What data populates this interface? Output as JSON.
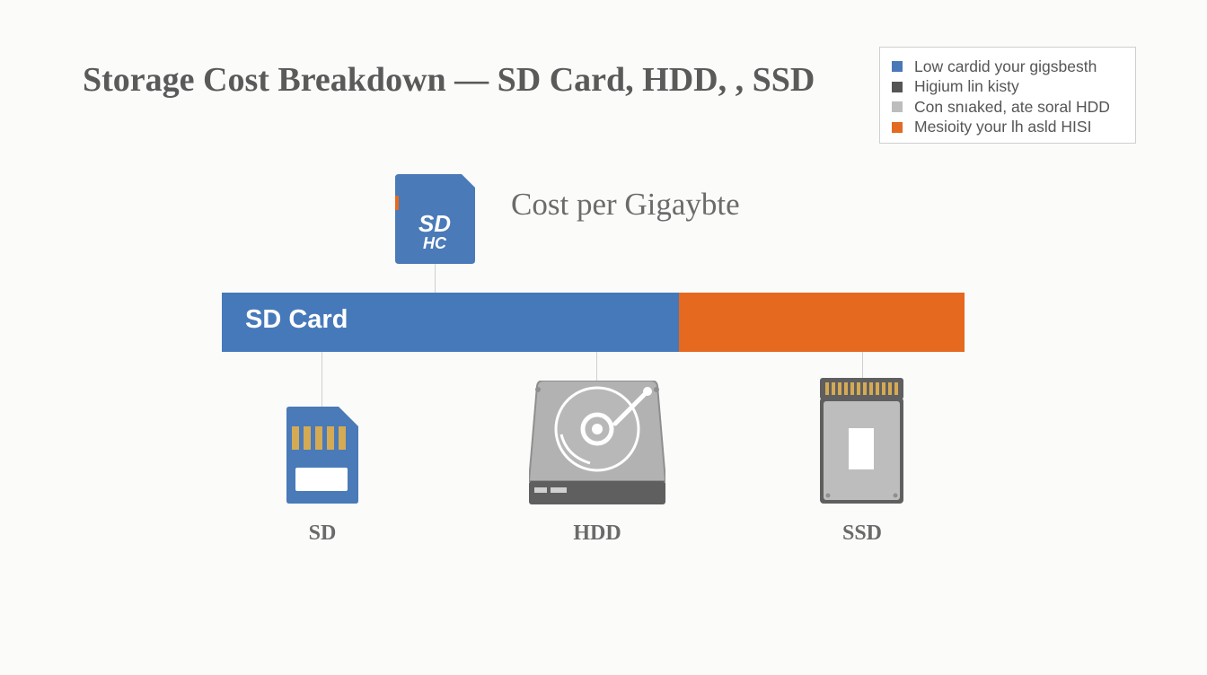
{
  "title": "Storage Cost Breakdown — SD Card, HDD, , SSD",
  "subtitle": "Cost per Gigaybte",
  "legend": [
    {
      "label": "Low cardid your gigsbesth",
      "color": "#4a78b8"
    },
    {
      "label": "Higium lin kisty",
      "color": "#555555"
    },
    {
      "label": "Con snıaked, ate soral HDD",
      "color": "#bdbdbd"
    },
    {
      "label": "Mesioity your lh asld HISI",
      "color": "#e26a22"
    }
  ],
  "bar": {
    "segments": [
      {
        "label": "SD Card",
        "share": 0.615,
        "color": "#4679ba"
      },
      {
        "label": "",
        "share": 0.385,
        "color": "#e5691f"
      }
    ]
  },
  "top_icon": {
    "name": "sdhc-card",
    "text_top": "SD",
    "text_bottom": "HC",
    "color": "#4a7ab8"
  },
  "devices": [
    {
      "label": "SD",
      "icon": "sd-card-icon"
    },
    {
      "label": "HDD",
      "icon": "hard-drive-icon"
    },
    {
      "label": "SSD",
      "icon": "ssd-icon"
    }
  ]
}
